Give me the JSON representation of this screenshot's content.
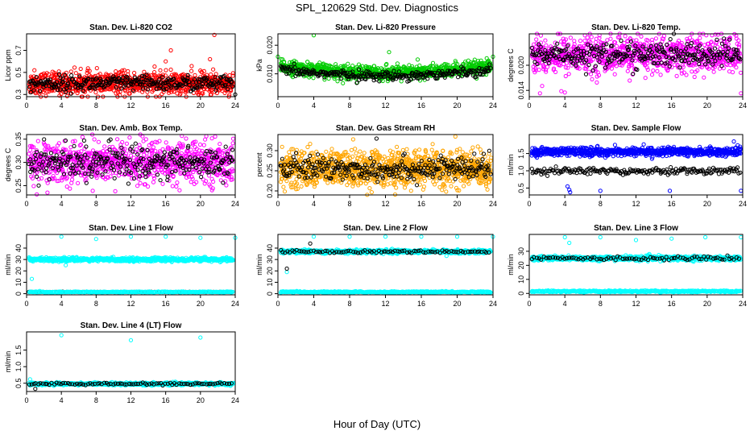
{
  "figure": {
    "title": "SPL_120629  Std. Dev. Diagnostics",
    "xlabel": "Hour of Day (UTC)"
  },
  "chart_data": [
    {
      "type": "scatter",
      "title": "Stan. Dev. Li-820 CO2",
      "ylabel": "Licor ppm",
      "xlim": [
        0,
        24
      ],
      "xticks": [
        0,
        4,
        8,
        12,
        16,
        20,
        24
      ],
      "ylim": [
        0.28,
        0.85
      ],
      "yticks": [
        0.3,
        0.5,
        0.7
      ],
      "ytick_labels": [
        "0.3",
        "0.5",
        "0.7"
      ],
      "series": [
        {
          "color": "#ff0000",
          "n": 900,
          "base": 0.4,
          "spread": 0.05,
          "outliers": [
            [
              16.0,
              0.6
            ],
            [
              16.6,
              0.7
            ],
            [
              21.6,
              0.84
            ],
            [
              21.1,
              0.62
            ],
            [
              0.9,
              0.52
            ]
          ]
        },
        {
          "color": "#000000",
          "n": 280,
          "base": 0.4,
          "spread": 0.035,
          "outliers": [
            [
              0.5,
              0.32
            ],
            [
              24.0,
              0.3
            ]
          ]
        }
      ],
      "slope": 0.0
    },
    {
      "type": "scatter",
      "title": "Stan. Dev. Li-820 Pressure",
      "ylabel": "kPa",
      "xlim": [
        0,
        24
      ],
      "xticks": [
        0,
        4,
        8,
        12,
        16,
        20,
        24
      ],
      "ylim": [
        0.002,
        0.024
      ],
      "yticks": [
        0.01,
        0.02
      ],
      "ytick_labels": [
        "0.010",
        "0.020"
      ],
      "series": [
        {
          "color": "#00cc00",
          "n": 900,
          "base": 0.0125,
          "spread": 0.0012,
          "outliers": [
            [
              0.0,
              0.016
            ],
            [
              4.0,
              0.0235
            ],
            [
              7.8,
              0.0135
            ],
            [
              12.4,
              0.0176
            ],
            [
              15.6,
              0.015
            ],
            [
              19.8,
              0.0145
            ],
            [
              24.0,
              0.016
            ]
          ]
        },
        {
          "color": "#000000",
          "n": 280,
          "base": 0.0115,
          "spread": 0.0008,
          "outliers": []
        }
      ],
      "slope": -0.00022
    },
    {
      "type": "scatter",
      "title": "Stan. Dev. Li-820 Temp.",
      "ylabel": "degrees C",
      "xlim": [
        0,
        24
      ],
      "xticks": [
        0,
        4,
        8,
        12,
        16,
        20,
        24
      ],
      "ylim": [
        0.0125,
        0.0275
      ],
      "yticks": [
        0.014,
        0.02
      ],
      "ytick_labels": [
        "0.014",
        "0.020"
      ],
      "series": [
        {
          "color": "#ff00ff",
          "n": 900,
          "base": 0.0225,
          "spread": 0.0022,
          "outliers": [
            [
              1.2,
              0.0133
            ],
            [
              3.6,
              0.0138
            ],
            [
              4.0,
              0.0135
            ],
            [
              23.8,
              0.0133
            ]
          ]
        },
        {
          "color": "#000000",
          "n": 280,
          "base": 0.0225,
          "spread": 0.0015,
          "outliers": []
        }
      ],
      "slope": 0.0
    },
    {
      "type": "scatter",
      "title": "Stan. Dev. Amb. Box Temp.",
      "ylabel": "degrees C",
      "xlim": [
        0,
        24
      ],
      "xticks": [
        0,
        4,
        8,
        12,
        16,
        20,
        24
      ],
      "ylim": [
        0.23,
        0.36
      ],
      "yticks": [
        0.25,
        0.3,
        0.35
      ],
      "ytick_labels": [
        "0.25",
        "0.30",
        "0.35"
      ],
      "series": [
        {
          "color": "#ff00ff",
          "n": 900,
          "base": 0.3,
          "spread": 0.022,
          "outliers": [
            [
              2.4,
              0.235
            ],
            [
              10.2,
              0.238
            ],
            [
              17.6,
              0.24
            ]
          ]
        },
        {
          "color": "#000000",
          "n": 280,
          "base": 0.3,
          "spread": 0.018,
          "outliers": []
        }
      ],
      "slope": 0.0
    },
    {
      "type": "scatter",
      "title": "Stan. Dev. Gas Stream RH",
      "ylabel": "percent",
      "xlim": [
        0,
        24
      ],
      "xticks": [
        0,
        4,
        8,
        12,
        16,
        20,
        24
      ],
      "ylim": [
        0.19,
        0.34
      ],
      "yticks": [
        0.2,
        0.25,
        0.3
      ],
      "ytick_labels": [
        "0.20",
        "0.25",
        "0.30"
      ],
      "series": [
        {
          "color": "#ffa500",
          "n": 1100,
          "base": 0.255,
          "spread": 0.022,
          "outliers": [
            [
              8.4,
              0.328
            ],
            [
              19.8,
              0.335
            ]
          ]
        },
        {
          "color": "#000000",
          "n": 280,
          "base": 0.255,
          "spread": 0.015,
          "outliers": [
            [
              11.0,
              0.33
            ]
          ]
        }
      ],
      "slope": 0.0
    },
    {
      "type": "scatter",
      "title": "Stan. Dev. Sample Flow",
      "ylabel": "ml/min",
      "xlim": [
        0,
        24
      ],
      "xticks": [
        0,
        4,
        8,
        12,
        16,
        20,
        24
      ],
      "ylim": [
        0.3,
        2.05
      ],
      "yticks": [
        0.5,
        1.0,
        1.5
      ],
      "ytick_labels": [
        "0.5",
        "1.0",
        "1.5"
      ],
      "series": [
        {
          "color": "#0000ff",
          "n": 800,
          "base": 1.55,
          "spread": 0.06,
          "outliers": [
            [
              4.3,
              0.55
            ],
            [
              4.5,
              0.45
            ],
            [
              4.6,
              0.38
            ],
            [
              8.0,
              0.42
            ],
            [
              15.8,
              0.42
            ],
            [
              23.8,
              0.42
            ],
            [
              23.0,
              1.85
            ]
          ]
        },
        {
          "color": "#000000",
          "n": 200,
          "base": 1.0,
          "spread": 0.05,
          "outliers": []
        }
      ],
      "slope": 0.0
    },
    {
      "type": "scatter",
      "title": "Stan. Dev. Line 1 Flow",
      "ylabel": "ml/min",
      "xlim": [
        0,
        24
      ],
      "xticks": [
        0,
        4,
        8,
        12,
        16,
        20,
        24
      ],
      "ylim": [
        -1,
        52
      ],
      "yticks": [
        0,
        10,
        20,
        30,
        40
      ],
      "ytick_labels": [
        "0",
        "10",
        "20",
        "30",
        "40"
      ],
      "series": [
        {
          "color": "#00ffff",
          "n": 700,
          "base": 30,
          "spread": 0.8,
          "outliers": [
            [
              0.6,
              13
            ],
            [
              4.0,
              50
            ],
            [
              4.5,
              25
            ],
            [
              8.0,
              48
            ],
            [
              12.0,
              50
            ],
            [
              16.0,
              50
            ],
            [
              20.0,
              49
            ],
            [
              24.0,
              49
            ],
            [
              0.3,
              32
            ]
          ]
        },
        {
          "color": "#000000",
          "n": 60,
          "base": 1.5,
          "spread": 0.1,
          "outliers": []
        },
        {
          "color": "#00ffff",
          "n": 300,
          "base": 1.5,
          "spread": 0.2,
          "outliers": []
        }
      ],
      "slope": 0.0
    },
    {
      "type": "scatter",
      "title": "Stan. Dev. Line 2 Flow",
      "ylabel": "ml/min",
      "xlim": [
        0,
        24
      ],
      "xticks": [
        0,
        4,
        8,
        12,
        16,
        20,
        24
      ],
      "ylim": [
        -1,
        52
      ],
      "yticks": [
        0,
        10,
        20,
        30,
        40
      ],
      "ytick_labels": [
        "0",
        "10",
        "20",
        "30",
        "40"
      ],
      "series": [
        {
          "color": "#00ffff",
          "n": 700,
          "base": 37,
          "spread": 0.8,
          "outliers": [
            [
              1.0,
              19
            ],
            [
              4.0,
              50
            ],
            [
              8.0,
              50
            ],
            [
              12.0,
              50
            ],
            [
              16.0,
              50
            ],
            [
              20.0,
              50
            ],
            [
              24.0,
              50
            ]
          ]
        },
        {
          "color": "#000000",
          "n": 90,
          "base": 37,
          "spread": 0.6,
          "outliers": [
            [
              1.0,
              22
            ],
            [
              3.6,
              44
            ]
          ]
        },
        {
          "color": "#00ffff",
          "n": 400,
          "base": 1.5,
          "spread": 0.3,
          "outliers": []
        }
      ],
      "slope": 0.0
    },
    {
      "type": "scatter",
      "title": "Stan. Dev. Line 3 Flow",
      "ylabel": "ml/min",
      "xlim": [
        0,
        24
      ],
      "xticks": [
        0,
        4,
        8,
        12,
        16,
        20,
        24
      ],
      "ylim": [
        -1,
        42
      ],
      "yticks": [
        0,
        10,
        20,
        30
      ],
      "ytick_labels": [
        "0",
        "10",
        "20",
        "30"
      ],
      "series": [
        {
          "color": "#00ffff",
          "n": 700,
          "base": 25,
          "spread": 0.8,
          "outliers": [
            [
              4.0,
              40
            ],
            [
              4.5,
              36
            ],
            [
              8.0,
              40
            ],
            [
              12.0,
              38
            ],
            [
              16.0,
              39
            ],
            [
              19.8,
              40
            ],
            [
              23.8,
              40
            ]
          ]
        },
        {
          "color": "#000000",
          "n": 90,
          "base": 25,
          "spread": 0.6,
          "outliers": []
        },
        {
          "color": "#00ffff",
          "n": 400,
          "base": 1.5,
          "spread": 0.3,
          "outliers": []
        }
      ],
      "slope": 0.0
    },
    {
      "type": "scatter",
      "title": "Stan. Dev. Line 4 (LT) Flow",
      "ylabel": "ml/min",
      "xlim": [
        0,
        24
      ],
      "xticks": [
        0,
        4,
        8,
        12,
        16,
        20,
        24
      ],
      "ylim": [
        0.25,
        2.05
      ],
      "yticks": [
        0.5,
        1.0,
        1.5
      ],
      "ytick_labels": [
        "0.5",
        "1.0",
        "1.5"
      ],
      "series": [
        {
          "color": "#00ffff",
          "n": 700,
          "base": 0.48,
          "spread": 0.02,
          "outliers": [
            [
              4.0,
              1.95
            ],
            [
              12.0,
              1.8
            ],
            [
              20.0,
              1.88
            ],
            [
              0.4,
              0.62
            ]
          ]
        },
        {
          "color": "#000000",
          "n": 90,
          "base": 0.48,
          "spread": 0.015,
          "outliers": [
            [
              1.0,
              0.33
            ]
          ]
        }
      ],
      "slope": 0.0
    }
  ]
}
